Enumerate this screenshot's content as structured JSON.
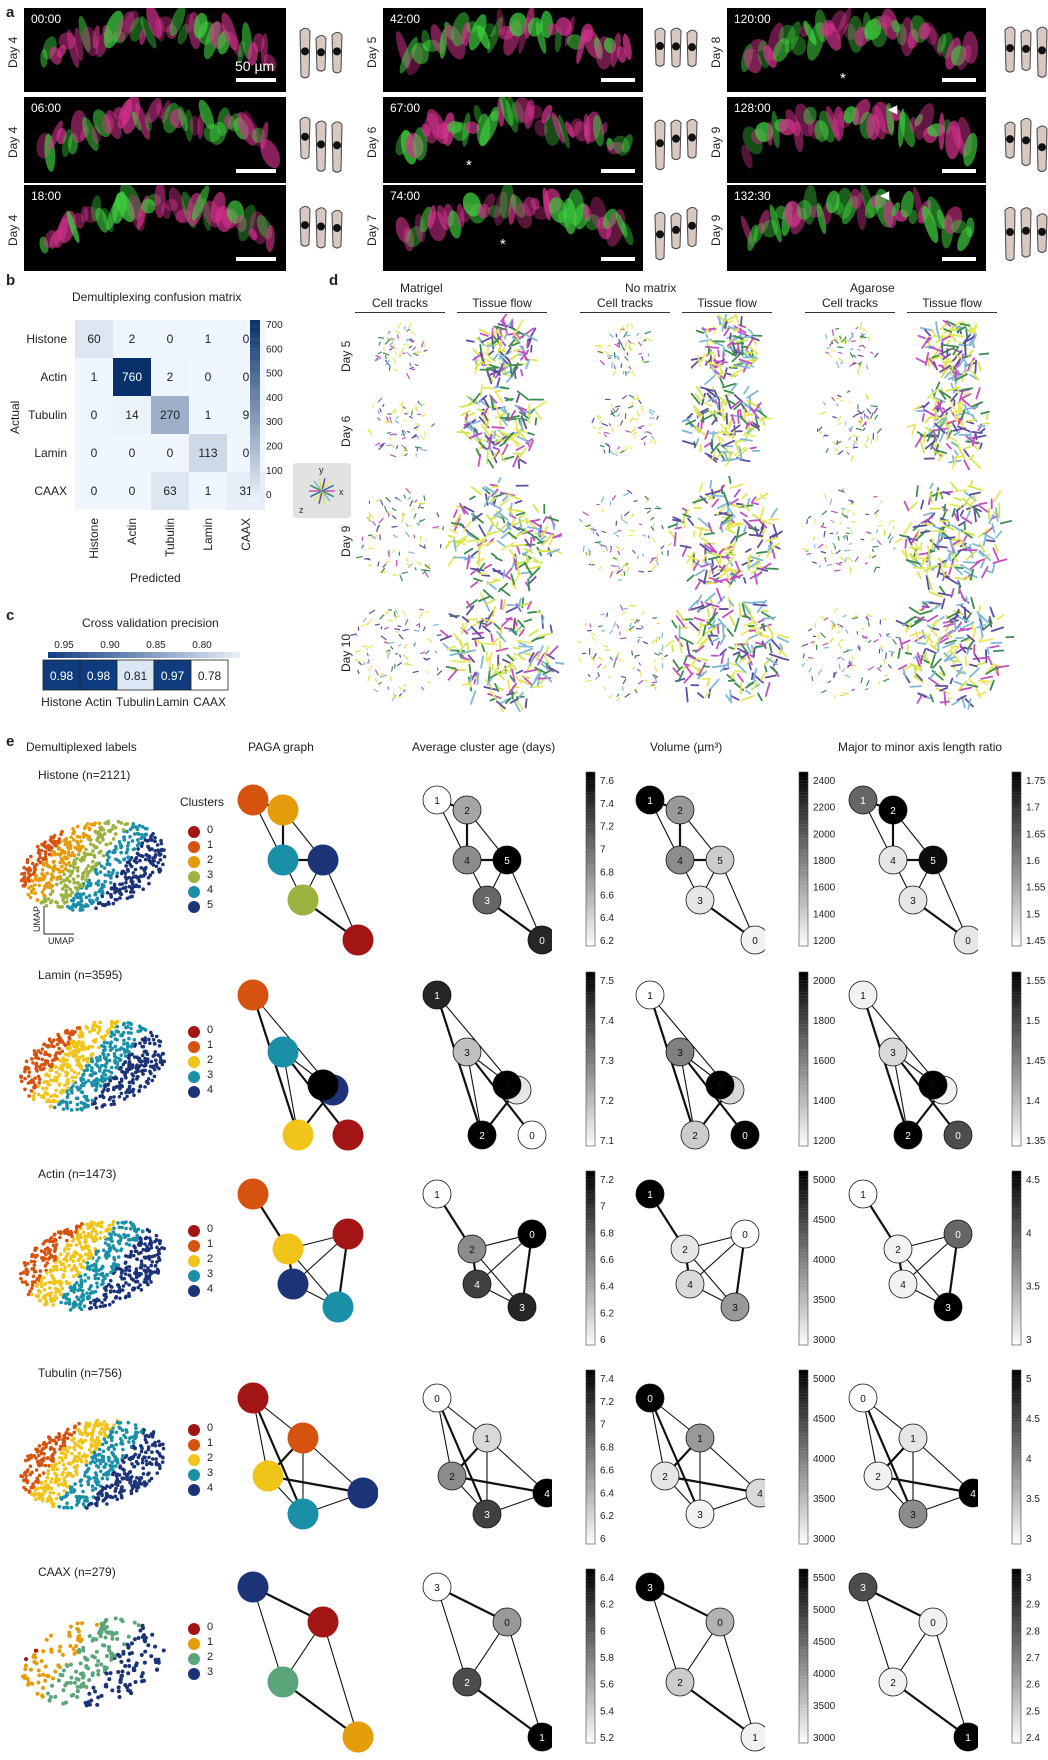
{
  "panel_letters": [
    "a",
    "b",
    "c",
    "d",
    "e"
  ],
  "panel_a": {
    "scale_label": "50 µm",
    "frames": [
      {
        "time": "00:00",
        "day": "Day 4"
      },
      {
        "time": "06:00",
        "day": "Day 4"
      },
      {
        "time": "18:00",
        "day": "Day 4"
      },
      {
        "time": "42:00",
        "day": "Day 5"
      },
      {
        "time": "67:00",
        "day": "Day 6"
      },
      {
        "time": "74:00",
        "day": "Day 7"
      },
      {
        "time": "120:00",
        "day": "Day 8"
      },
      {
        "time": "128:00",
        "day": "Day 9"
      },
      {
        "time": "132:30",
        "day": "Day 9"
      }
    ]
  },
  "panel_b": {
    "title": "Demultiplexing confusion matrix",
    "ylabel": "Actual",
    "xlabel": "Predicted",
    "labels": [
      "Histone",
      "Actin",
      "Tubulin",
      "Lamin",
      "CAAX"
    ],
    "matrix": [
      [
        60,
        2,
        0,
        1,
        0
      ],
      [
        1,
        760,
        2,
        0,
        0
      ],
      [
        0,
        14,
        270,
        1,
        9
      ],
      [
        0,
        0,
        0,
        113,
        0
      ],
      [
        0,
        0,
        63,
        1,
        31
      ]
    ],
    "colorbar_ticks": [
      "700",
      "600",
      "500",
      "400",
      "300",
      "200",
      "100",
      "0"
    ]
  },
  "panel_c": {
    "title": "Cross validation precision",
    "ticks": [
      "0.95",
      "0.90",
      "0.85",
      "0.80"
    ],
    "labels": [
      "Histone",
      "Actin",
      "Tubulin",
      "Lamin",
      "CAAX"
    ],
    "values": [
      "0.98",
      "0.98",
      "0.81",
      "0.97",
      "0.78"
    ]
  },
  "panel_d": {
    "conditions": [
      "Matrigel",
      "No matrix",
      "Agarose"
    ],
    "subheads": [
      "Cell tracks",
      "Tissue flow"
    ],
    "days": [
      "Day 5",
      "Day 6",
      "Day 9",
      "Day 10"
    ],
    "axes": [
      "x",
      "y",
      "z"
    ]
  },
  "panel_e": {
    "col_headers": [
      "Demultiplexed labels",
      "PAGA graph",
      "Average cluster age (days)",
      "Volume (µm³)",
      "Major to minor axis length ratio"
    ],
    "clusters_title": "Clusters",
    "umap_axis": "UMAP",
    "rows": [
      {
        "title": "Histone (n=2121)",
        "clusters": [
          "0",
          "1",
          "2",
          "3",
          "4",
          "5"
        ],
        "age_ticks": [
          "7.6",
          "7.4",
          "7.2",
          "7",
          "6.8",
          "6.6",
          "6.4",
          "6.2"
        ],
        "vol_ticks": [
          "2400",
          "2200",
          "2000",
          "1800",
          "1600",
          "1400",
          "1200"
        ],
        "ratio_ticks": [
          "1.75",
          "1.7",
          "1.65",
          "1.6",
          "1.55",
          "1.5",
          "1.45"
        ]
      },
      {
        "title": "Lamin (n=3595)",
        "clusters": [
          "0",
          "1",
          "2",
          "3",
          "4"
        ],
        "age_ticks": [
          "7.5",
          "7.4",
          "7.3",
          "7.2",
          "7.1"
        ],
        "vol_ticks": [
          "2000",
          "1800",
          "1600",
          "1400",
          "1200"
        ],
        "ratio_ticks": [
          "1.55",
          "1.5",
          "1.45",
          "1.4",
          "1.35"
        ]
      },
      {
        "title": "Actin (n=1473)",
        "clusters": [
          "0",
          "1",
          "2",
          "3",
          "4"
        ],
        "age_ticks": [
          "7.2",
          "7",
          "6.8",
          "6.6",
          "6.4",
          "6.2",
          "6"
        ],
        "vol_ticks": [
          "5000",
          "4500",
          "4000",
          "3500",
          "3000"
        ],
        "ratio_ticks": [
          "4.5",
          "4",
          "3.5",
          "3"
        ]
      },
      {
        "title": "Tubulin (n=756)",
        "clusters": [
          "0",
          "1",
          "2",
          "3",
          "4"
        ],
        "age_ticks": [
          "7.4",
          "7.2",
          "7",
          "6.8",
          "6.6",
          "6.4",
          "6.2",
          "6"
        ],
        "vol_ticks": [
          "5000",
          "4500",
          "4000",
          "3500",
          "3000"
        ],
        "ratio_ticks": [
          "5",
          "4.5",
          "4",
          "3.5",
          "3"
        ]
      },
      {
        "title": "CAAX (n=279)",
        "clusters": [
          "0",
          "1",
          "2",
          "3"
        ],
        "age_ticks": [
          "6.4",
          "6.2",
          "6",
          "5.8",
          "5.6",
          "5.4",
          "5.2"
        ],
        "vol_ticks": [
          "5500",
          "5000",
          "4500",
          "4000",
          "3500",
          "3000"
        ],
        "ratio_ticks": [
          "3",
          "2.9",
          "2.8",
          "2.7",
          "2.6",
          "2.5",
          "2.4"
        ]
      }
    ]
  },
  "colors": {
    "dark_red": "#a31515",
    "orange": "#d5530e",
    "amber": "#e59c0b",
    "yellow": "#f0c419",
    "olive": "#9cb23f",
    "teal": "#1a8fa8",
    "navy": "#1c3377",
    "sage": "#5aa57a",
    "mat_dark": "#0d3a78"
  }
}
